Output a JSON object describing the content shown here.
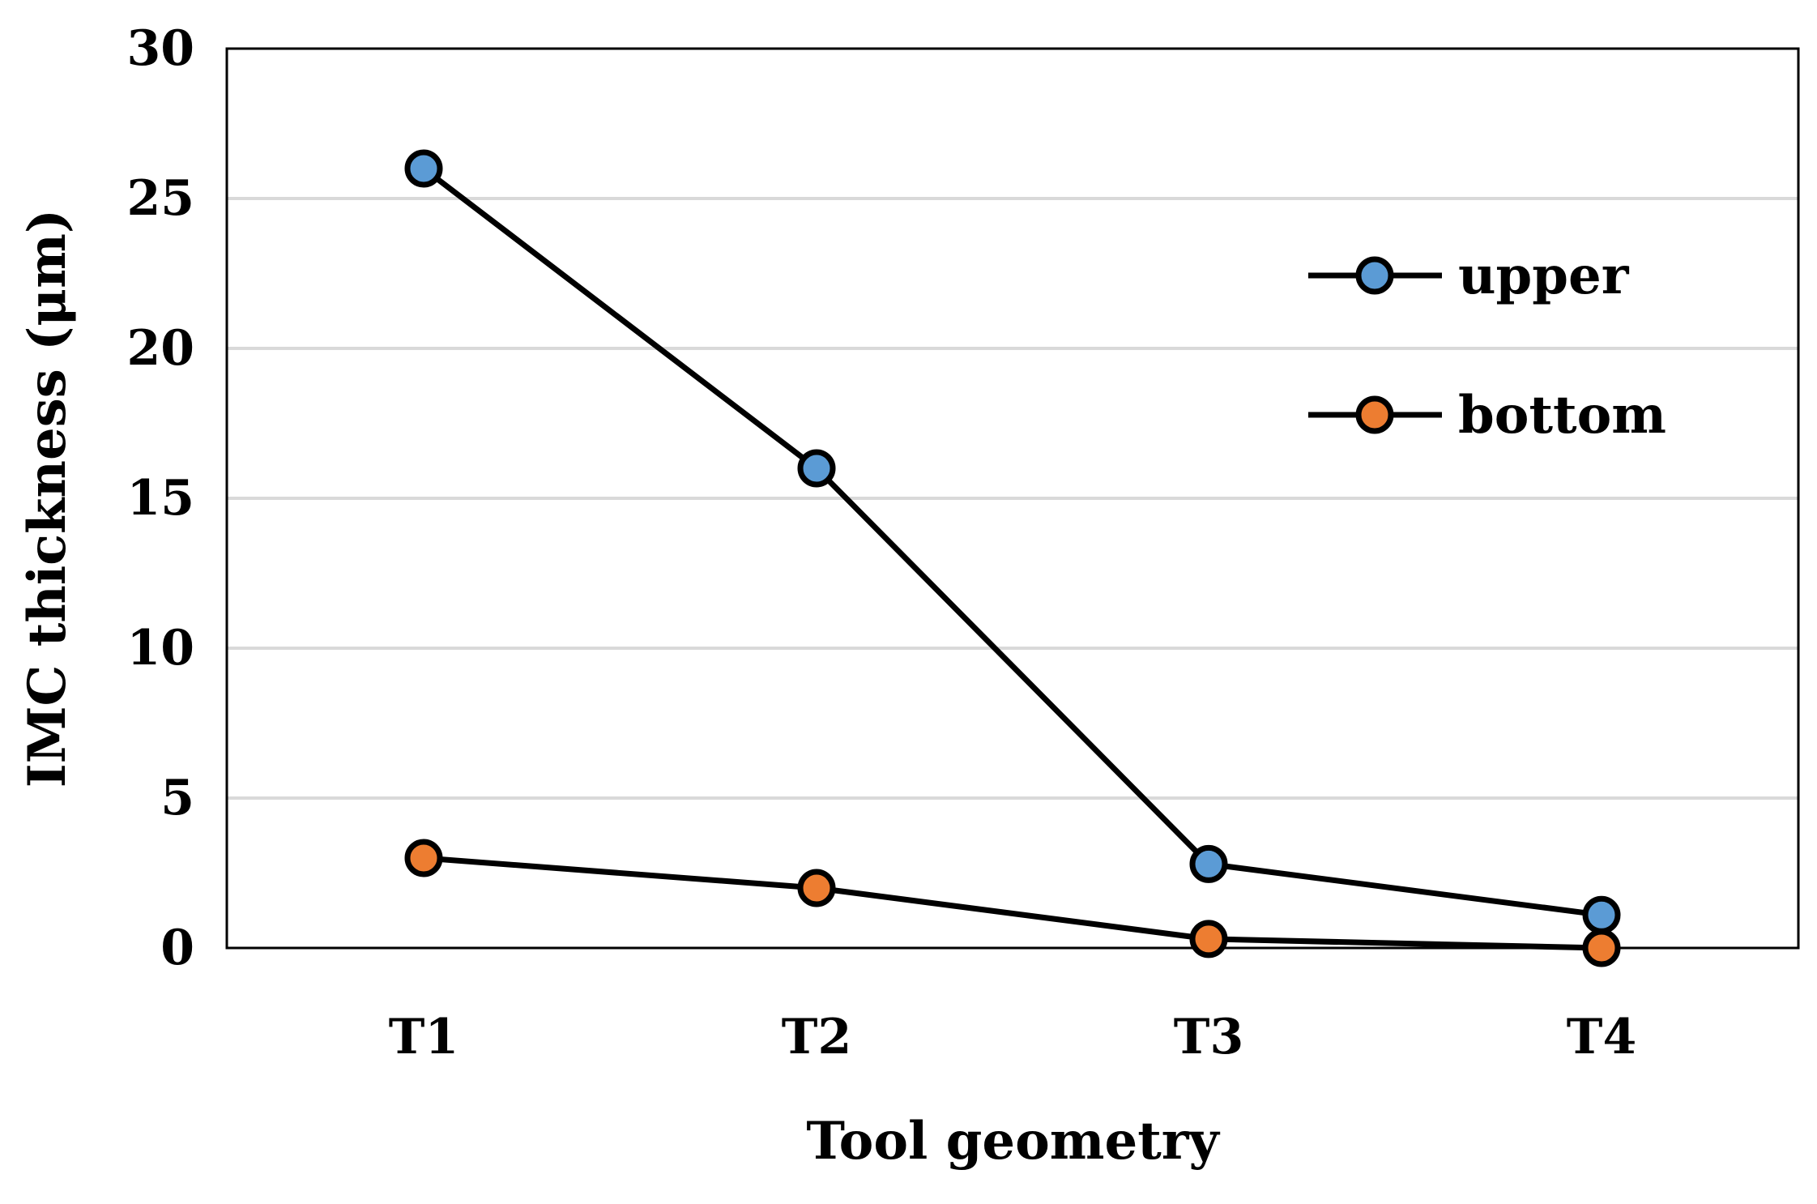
{
  "chart_data": {
    "type": "line",
    "categories": [
      "T1",
      "T2",
      "T3",
      "T4"
    ],
    "xlabel": "Tool geometry",
    "ylabel": "IMC thickness (μm)",
    "ylim": [
      0,
      30
    ],
    "yticks": [
      0,
      5,
      10,
      15,
      20,
      25,
      30
    ],
    "grid": "horizontal",
    "legend": "right",
    "series": [
      {
        "name": "upper",
        "values": [
          26,
          16,
          2.8,
          1.1
        ],
        "color": "#5B9BD5"
      },
      {
        "name": "bottom",
        "values": [
          3,
          2,
          0.3,
          0
        ],
        "color": "#ED7D31"
      }
    ],
    "line_color": "#000000",
    "grid_color": "#d9d9d9"
  }
}
